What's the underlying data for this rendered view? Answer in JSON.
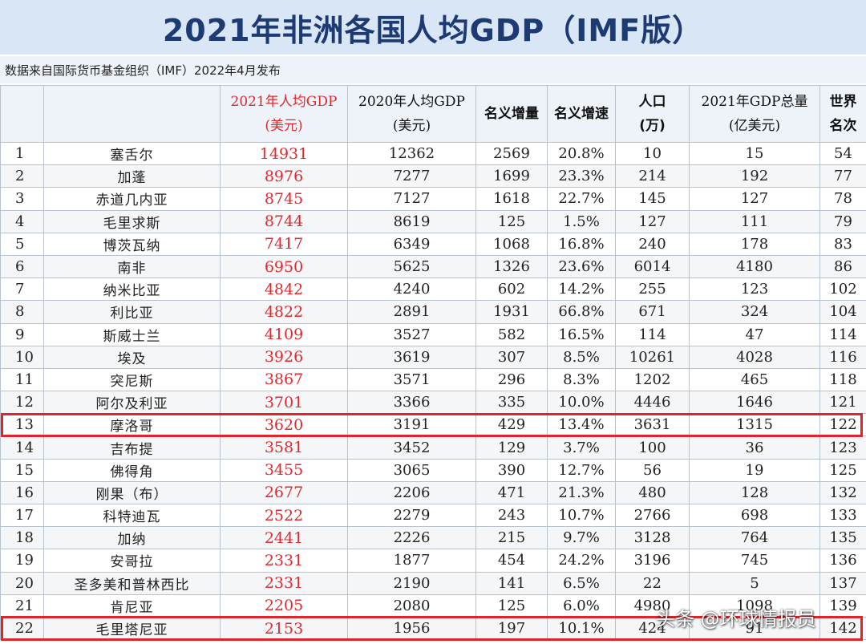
{
  "title": "2021年非洲各国人均GDP（IMF版）",
  "subtitle": "数据来自国际货币基金组织（IMF）2022年4月发布",
  "columns": {
    "c0": "",
    "c1": "",
    "c2_line1": "2021年人均GDP",
    "c2_line2": "(美元)",
    "c3_line1": "2020年人均GDP",
    "c3_line2": "(美元)",
    "c4": "名义增量",
    "c5": "名义增速",
    "c6_line1": "人口",
    "c6_line2": "(万)",
    "c7_line1": "2021年GDP总量",
    "c7_line2": "(亿美元)",
    "c8_line1": "世界",
    "c8_line2": "名次"
  },
  "rows": [
    [
      "1",
      "塞舌尔",
      "14931",
      "12362",
      "2569",
      "20.8%",
      "10",
      "15",
      "54"
    ],
    [
      "2",
      "加蓬",
      "8976",
      "7277",
      "1699",
      "23.3%",
      "214",
      "192",
      "77"
    ],
    [
      "3",
      "赤道几内亚",
      "8745",
      "7127",
      "1618",
      "22.7%",
      "145",
      "127",
      "78"
    ],
    [
      "4",
      "毛里求斯",
      "8744",
      "8619",
      "125",
      "1.5%",
      "127",
      "111",
      "79"
    ],
    [
      "5",
      "博茨瓦纳",
      "7417",
      "6349",
      "1068",
      "16.8%",
      "240",
      "178",
      "83"
    ],
    [
      "6",
      "南非",
      "6950",
      "5625",
      "1326",
      "23.6%",
      "6014",
      "4180",
      "86"
    ],
    [
      "7",
      "纳米比亚",
      "4842",
      "4240",
      "602",
      "14.2%",
      "255",
      "123",
      "102"
    ],
    [
      "8",
      "利比亚",
      "4822",
      "2891",
      "1931",
      "66.8%",
      "671",
      "324",
      "104"
    ],
    [
      "9",
      "斯威士兰",
      "4109",
      "3527",
      "582",
      "16.5%",
      "114",
      "47",
      "114"
    ],
    [
      "10",
      "埃及",
      "3926",
      "3619",
      "307",
      "8.5%",
      "10261",
      "4028",
      "116"
    ],
    [
      "11",
      "突尼斯",
      "3867",
      "3571",
      "296",
      "8.3%",
      "1202",
      "465",
      "118"
    ],
    [
      "12",
      "阿尔及利亚",
      "3701",
      "3366",
      "335",
      "10.0%",
      "4446",
      "1646",
      "121"
    ],
    [
      "13",
      "摩洛哥",
      "3620",
      "3191",
      "429",
      "13.4%",
      "3631",
      "1315",
      "122"
    ],
    [
      "14",
      "吉布提",
      "3581",
      "3452",
      "129",
      "3.7%",
      "100",
      "36",
      "123"
    ],
    [
      "15",
      "佛得角",
      "3455",
      "3065",
      "390",
      "12.7%",
      "56",
      "19",
      "125"
    ],
    [
      "16",
      "刚果（布）",
      "2677",
      "2206",
      "471",
      "21.3%",
      "480",
      "128",
      "132"
    ],
    [
      "17",
      "科特迪瓦",
      "2522",
      "2279",
      "243",
      "10.7%",
      "2766",
      "698",
      "133"
    ],
    [
      "18",
      "加纳",
      "2441",
      "2226",
      "215",
      "9.7%",
      "3128",
      "764",
      "135"
    ],
    [
      "19",
      "安哥拉",
      "2331",
      "1877",
      "454",
      "24.2%",
      "3196",
      "745",
      "136"
    ],
    [
      "20",
      "圣多美和普林西比",
      "2331",
      "2190",
      "141",
      "6.5%",
      "22",
      "5",
      "137"
    ],
    [
      "21",
      "肯尼亚",
      "2205",
      "2080",
      "125",
      "6.0%",
      "4980",
      "1098",
      "139"
    ],
    [
      "22",
      "毛里塔尼亚",
      "2153",
      "1956",
      "197",
      "10.1%",
      "424",
      "91",
      "142"
    ]
  ],
  "highlighted_ranks": [
    "13",
    "22"
  ],
  "highlight_color": "#e0242a",
  "gdp_color": "#e2282d",
  "watermark": "头条 @环球情报员"
}
